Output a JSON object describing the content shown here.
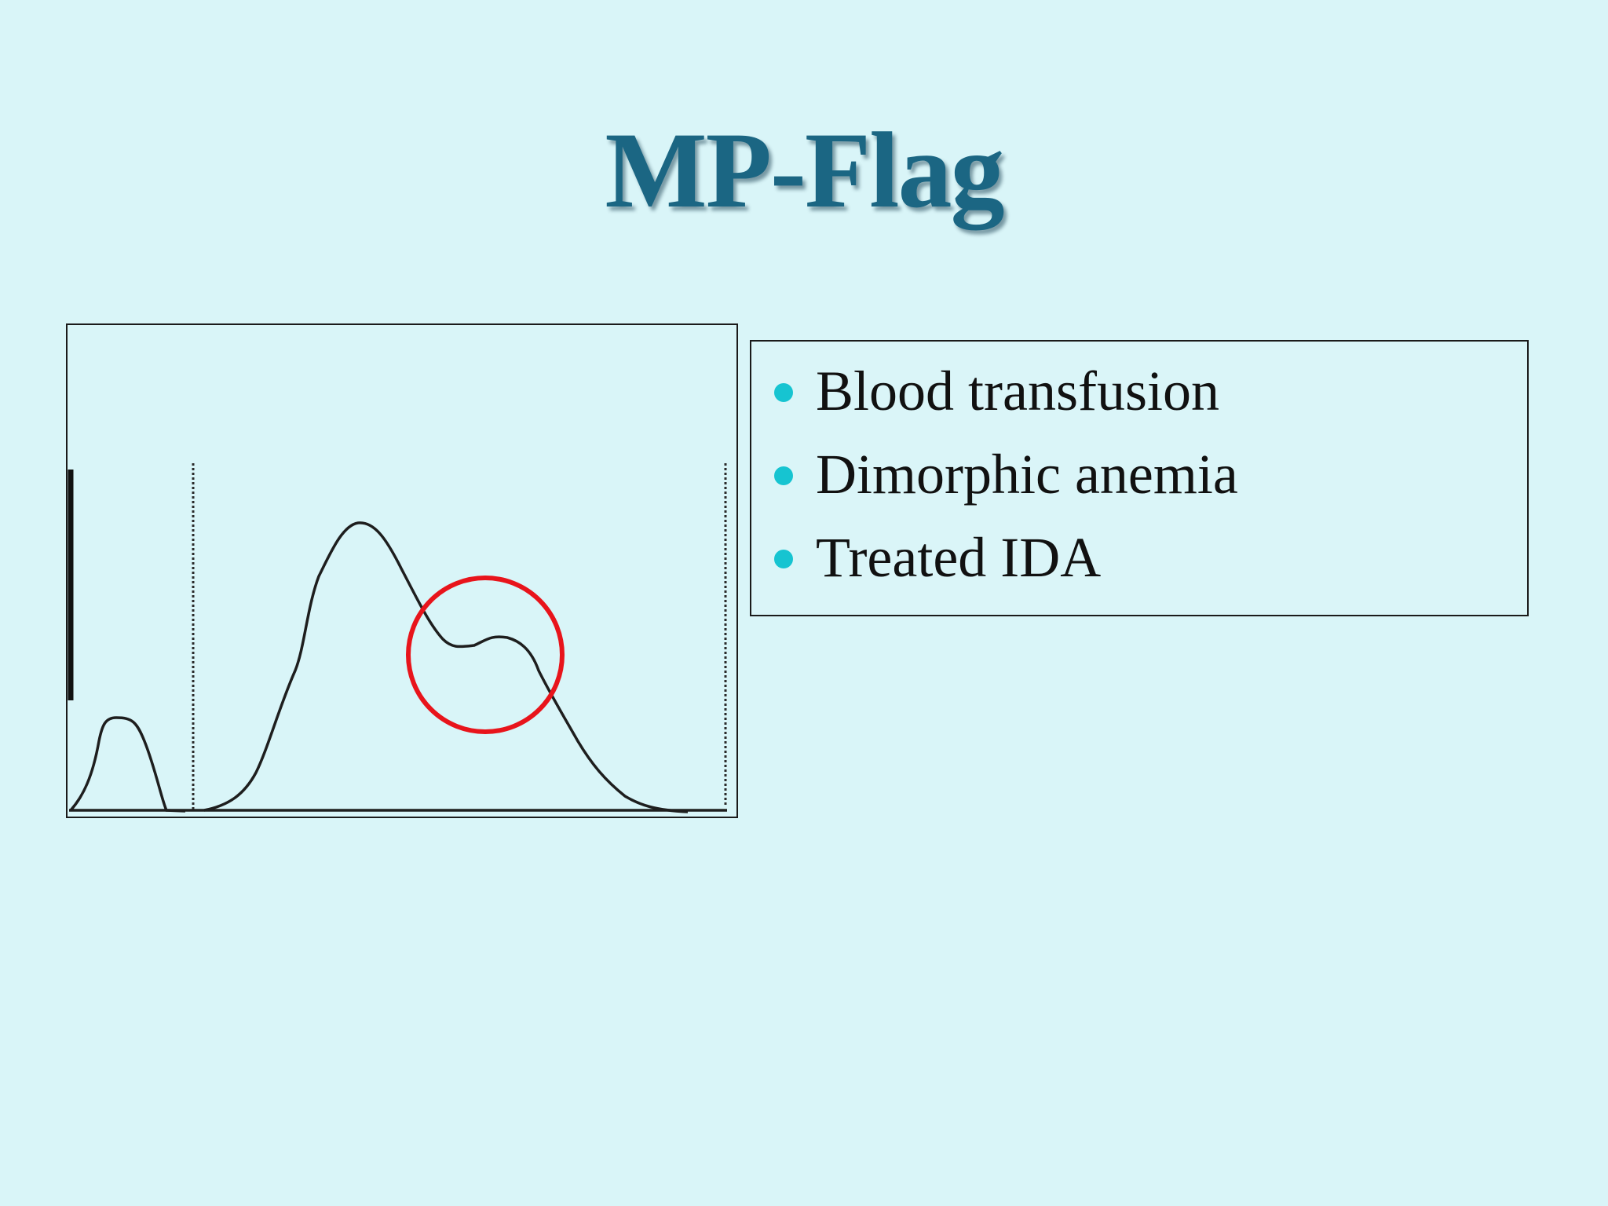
{
  "slide": {
    "title": "MP-Flag",
    "background_color": "#d9f5f8",
    "title_color": "#1b6683"
  },
  "figure": {
    "description_icon": "histogram-curve",
    "highlight_color": "#e8141b",
    "curve_color": "#1e1e1e"
  },
  "bullets": {
    "bullet_color": "#16c4d1",
    "items": [
      {
        "label": "Blood transfusion"
      },
      {
        "label": "Dimorphic anemia"
      },
      {
        "label": "Treated IDA"
      }
    ]
  }
}
